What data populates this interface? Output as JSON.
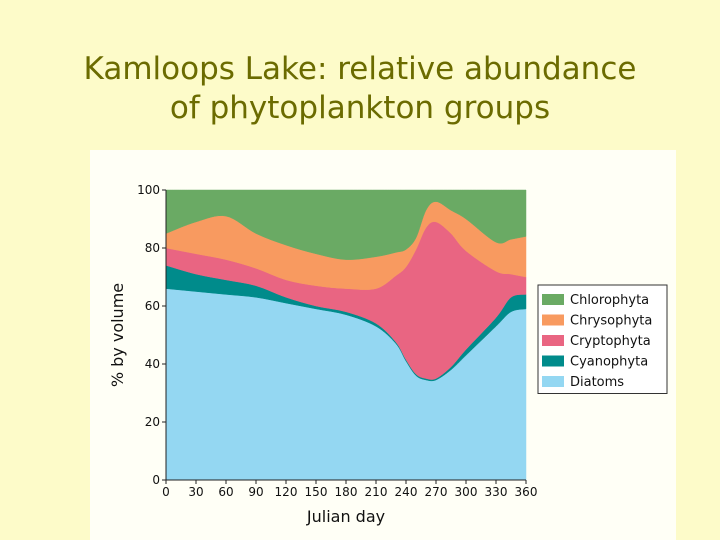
{
  "slide": {
    "title_line1": "Kamloops Lake: relative abundance",
    "title_line2": "of phytoplankton groups"
  },
  "chart_data": {
    "type": "area",
    "stacked": true,
    "xlabel": "Julian day",
    "ylabel": "% by volume",
    "xlim": [
      0,
      360
    ],
    "ylim": [
      0,
      100
    ],
    "xticks": [
      0,
      30,
      60,
      90,
      120,
      150,
      180,
      210,
      240,
      270,
      300,
      330,
      360
    ],
    "yticks": [
      0,
      20,
      40,
      60,
      80,
      100
    ],
    "x": [
      0,
      30,
      60,
      90,
      120,
      150,
      180,
      210,
      230,
      240,
      250,
      260,
      270,
      285,
      300,
      330,
      345,
      360
    ],
    "series": [
      {
        "name": "Diatoms",
        "color": "#94d7f2",
        "values": [
          66,
          65,
          64,
          63,
          61,
          59,
          57,
          53,
          47,
          41,
          36,
          34.5,
          34.5,
          38,
          43,
          53,
          58,
          59
        ]
      },
      {
        "name": "Cyanophyta",
        "color": "#008b8b",
        "values": [
          8,
          6,
          5,
          4,
          2,
          1,
          1,
          1,
          0.5,
          0.5,
          0.5,
          0.5,
          0.5,
          1,
          2,
          3,
          5,
          5
        ]
      },
      {
        "name": "Cryptophyta",
        "color": "#e96582",
        "values": [
          6,
          7,
          7,
          6,
          6,
          7,
          8,
          12,
          23,
          32,
          43,
          52,
          54,
          46,
          34,
          16,
          8,
          6
        ]
      },
      {
        "name": "Chrysophyta",
        "color": "#f89a60",
        "values": [
          5,
          11,
          15,
          12,
          12,
          11,
          10,
          11,
          8,
          6,
          4,
          6,
          7,
          8,
          11,
          10,
          12,
          14
        ]
      },
      {
        "name": "Chlorophyta",
        "color": "#6aaa64",
        "values": [
          15,
          11,
          9,
          15,
          19,
          22,
          24,
          23,
          21.5,
          20.5,
          16.5,
          7,
          4,
          7,
          10,
          18,
          17,
          16
        ]
      }
    ],
    "legend": [
      "Chlorophyta",
      "Chrysophyta",
      "Cryptophyta",
      "Cyanophyta",
      "Diatoms"
    ],
    "legend_position": "right"
  }
}
